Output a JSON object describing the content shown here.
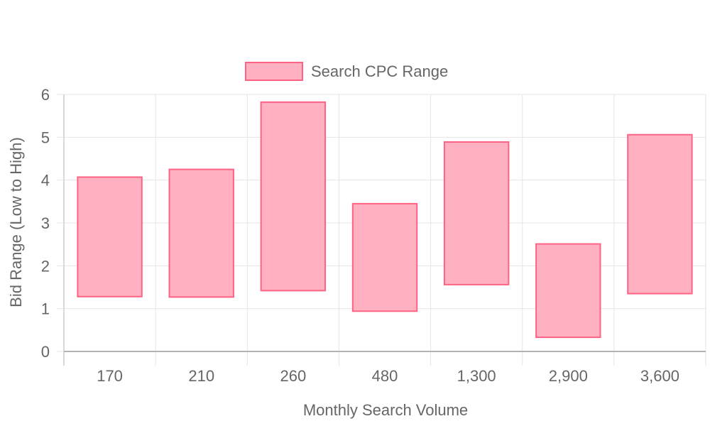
{
  "colors": {
    "bar_fill": "#ffb1c1",
    "bar_stroke": "#ff6384",
    "grid": "#e5e5e5",
    "axis": "#b3b3b3",
    "text": "#666666"
  },
  "chart_data": {
    "type": "bar",
    "subtype": "floating-range",
    "legend_position": "top",
    "grid": true,
    "xlabel": "Monthly Search Volume",
    "ylabel": "Bid Range (Low to High)",
    "ylim": [
      0,
      6
    ],
    "yticks": [
      0,
      1,
      2,
      3,
      4,
      5,
      6
    ],
    "categories": [
      "170",
      "210",
      "260",
      "480",
      "1,300",
      "2,900",
      "3,600"
    ],
    "series": [
      {
        "name": "Search CPC Range",
        "ranges": [
          [
            1.28,
            4.07
          ],
          [
            1.27,
            4.25
          ],
          [
            1.42,
            5.82
          ],
          [
            0.94,
            3.45
          ],
          [
            1.56,
            4.89
          ],
          [
            0.33,
            2.51
          ],
          [
            1.35,
            5.06
          ]
        ]
      }
    ]
  }
}
